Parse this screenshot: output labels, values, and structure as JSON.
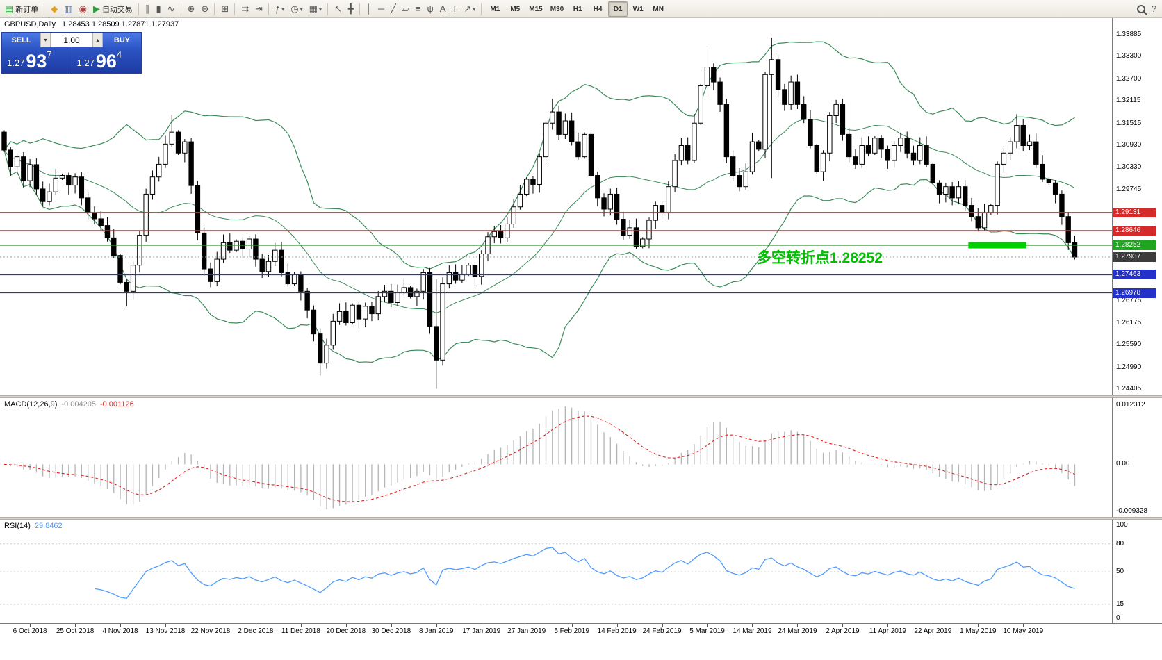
{
  "toolbar": {
    "groups": [
      {
        "items": [
          {
            "name": "new-order-button",
            "glyph": "▤",
            "glyph_color": "#2e9e3e",
            "label": "新订单"
          }
        ]
      },
      {
        "items": [
          {
            "name": "metaeditor-button",
            "glyph": "◆",
            "glyph_color": "#e0a020"
          },
          {
            "name": "market-watch-button",
            "glyph": "▥",
            "glyph_color": "#3a6ad4"
          },
          {
            "name": "navigator-button",
            "glyph": "◉",
            "glyph_color": "#b04040"
          },
          {
            "name": "autotrading-button",
            "glyph": "▶",
            "glyph_color": "#2e9e3e",
            "label": "自动交易"
          }
        ]
      },
      {
        "items": [
          {
            "name": "bar-chart-button",
            "glyph": "∥"
          },
          {
            "name": "candlestick-chart-button",
            "glyph": "▮"
          },
          {
            "name": "line-chart-button",
            "glyph": "∿"
          }
        ]
      },
      {
        "items": [
          {
            "name": "zoom-in-button",
            "glyph": "⊕"
          },
          {
            "name": "zoom-out-button",
            "glyph": "⊖"
          }
        ]
      },
      {
        "items": [
          {
            "name": "tile-windows-button",
            "glyph": "⊞"
          }
        ]
      },
      {
        "items": [
          {
            "name": "auto-scroll-button",
            "glyph": "⇉"
          },
          {
            "name": "chart-shift-button",
            "glyph": "⇥"
          }
        ]
      },
      {
        "items": [
          {
            "name": "indicators-button",
            "glyph": "ƒ",
            "caret": true
          },
          {
            "name": "periods-button",
            "glyph": "◷",
            "caret": true
          },
          {
            "name": "templates-button",
            "glyph": "▦",
            "caret": true
          }
        ]
      },
      {
        "items": [
          {
            "name": "cursor-button",
            "glyph": "↖"
          },
          {
            "name": "crosshair-button",
            "glyph": "╋"
          }
        ]
      },
      {
        "items": [
          {
            "name": "vertical-line-button",
            "glyph": "│"
          },
          {
            "name": "horizontal-line-button",
            "glyph": "─"
          },
          {
            "name": "trendline-button",
            "glyph": "╱"
          },
          {
            "name": "channel-button",
            "glyph": "▱"
          },
          {
            "name": "fibonacci-button",
            "glyph": "≡"
          },
          {
            "name": "pitchfork-button",
            "glyph": "ψ"
          },
          {
            "name": "text-button",
            "glyph": "A"
          },
          {
            "name": "text-label-button",
            "glyph": "T"
          },
          {
            "name": "arrow-tools-button",
            "glyph": "↗",
            "caret": true
          }
        ]
      }
    ],
    "timeframes": [
      "M1",
      "M5",
      "M15",
      "M30",
      "H1",
      "H4",
      "D1",
      "W1",
      "MN"
    ],
    "active_timeframe": "D1",
    "right_items": [
      {
        "name": "search-button",
        "css_icon": "mag"
      },
      {
        "name": "help-button",
        "glyph": "?"
      }
    ]
  },
  "quote": {
    "symbol_period": "GBPUSD,Daily",
    "ohlc": "1.28453 1.28509 1.27871 1.27937"
  },
  "trade_panel": {
    "sell_label": "SELL",
    "buy_label": "BUY",
    "volume": "1.00",
    "sell_price_small": "1.27",
    "sell_price_big": "93",
    "sell_price_sup": "7",
    "buy_price_small": "1.27",
    "buy_price_big": "96",
    "buy_price_sup": "4"
  },
  "annotation": {
    "text": "多空转折点1.28252",
    "color": "#00c000"
  },
  "price_axis": {
    "labels": [
      "1.33885",
      "1.33300",
      "1.32700",
      "1.32115",
      "1.31515",
      "1.30930",
      "1.30330",
      "1.29745",
      "1.29160",
      "1.28560",
      "1.27975",
      "1.27380",
      "1.26775",
      "1.26175",
      "1.25590",
      "1.24990",
      "1.24405"
    ],
    "tags": [
      {
        "text": "1.29131",
        "bg": "#d42a2a"
      },
      {
        "text": "1.28646",
        "bg": "#d42a2a"
      },
      {
        "text": "1.28252",
        "bg": "#1fa51f"
      },
      {
        "text": "1.27937",
        "bg": "#3c3c3c"
      },
      {
        "text": "1.27463",
        "bg": "#2431c8"
      },
      {
        "text": "1.26978",
        "bg": "#2431c8"
      }
    ]
  },
  "indicators": {
    "macd": {
      "name": "MACD(12,26,9)",
      "value1": "-0.004205",
      "value2": "-0.001126",
      "axis_top": "0.012312",
      "axis_zero": "0.00",
      "axis_bottom": "-0.009328"
    },
    "rsi": {
      "name": "RSI(14)",
      "value": "29.8462",
      "axis": [
        "100",
        "80",
        "50",
        "15",
        "0"
      ],
      "levels": [
        80,
        50,
        15
      ]
    }
  },
  "colors": {
    "bollinger": "#3a8a58",
    "candle_up": "#ffffff",
    "candle_down": "#000000",
    "candle_outline": "#000000",
    "macd_histogram": "#b4b4b4",
    "macd_signal": "#e02020",
    "rsi_line": "#4f9bff",
    "support_bar": "#00cf00",
    "current_price_line": "#999999"
  },
  "chart_data": {
    "type": "candlestick",
    "symbol": "GBPUSD",
    "timeframe": "Daily",
    "ylim": [
      1.24405,
      1.33885
    ],
    "open0": 1.3128,
    "closes": [
      1.308,
      1.3035,
      1.3062,
      1.2998,
      1.3041,
      1.2976,
      1.2942,
      1.2968,
      1.3005,
      1.3012,
      1.2986,
      1.3008,
      1.2952,
      1.2912,
      1.2896,
      1.2878,
      1.2845,
      1.2798,
      1.2726,
      1.2702,
      1.2772,
      1.2852,
      1.2962,
      1.3008,
      1.3042,
      1.3096,
      1.3128,
      1.3072,
      1.3102,
      1.2985,
      1.2858,
      1.2762,
      1.2728,
      1.2788,
      1.2832,
      1.2812,
      1.2836,
      1.2815,
      1.2842,
      1.2788,
      1.2755,
      1.2782,
      1.2812,
      1.2752,
      1.2722,
      1.2748,
      1.2702,
      1.2652,
      1.2588,
      1.251,
      1.2558,
      1.2622,
      1.2648,
      1.2618,
      1.2665,
      1.2628,
      1.2662,
      1.2642,
      1.2688,
      1.2702,
      1.2672,
      1.2698,
      1.2712,
      1.2688,
      1.2702,
      1.2752,
      1.2608,
      1.2518,
      1.2722,
      1.2752,
      1.2732,
      1.2748,
      1.2772,
      1.2742,
      1.2802,
      1.2848,
      1.2862,
      1.2845,
      1.2882,
      1.2928,
      1.2962,
      1.3002,
      1.2988,
      1.3062,
      1.3152,
      1.3182,
      1.3122,
      1.3158,
      1.3102,
      1.3062,
      1.3122,
      1.3012,
      1.2952,
      1.2922,
      1.2962,
      1.2895,
      1.2852,
      1.2872,
      1.2822,
      1.2842,
      1.2892,
      1.2932,
      1.2912,
      1.2982,
      1.3052,
      1.3092,
      1.3052,
      1.3152,
      1.3252,
      1.3302,
      1.3262,
      1.3202,
      1.3062,
      1.3012,
      1.2982,
      1.3022,
      1.3102,
      1.3082,
      1.3282,
      1.3322,
      1.3242,
      1.3202,
      1.3262,
      1.3202,
      1.3162,
      1.3092,
      1.3022,
      1.3072,
      1.3172,
      1.3202,
      1.3122,
      1.3062,
      1.3042,
      1.3092,
      1.3072,
      1.3112,
      1.3082,
      1.3052,
      1.3092,
      1.3112,
      1.3072,
      1.3052,
      1.3092,
      1.3042,
      1.2992,
      1.2962,
      1.2982,
      1.2952,
      1.2982,
      1.2932,
      1.2902,
      1.2872,
      1.2912,
      1.2932,
      1.3042,
      1.3072,
      1.3102,
      1.3146,
      1.3092,
      1.3102,
      1.3042,
      1.3002,
      1.2992,
      1.2962,
      1.2902,
      1.2832,
      1.27937
    ],
    "extremes": {
      "19": [
        null,
        1.2662
      ],
      "26": [
        1.3175,
        null
      ],
      "49": [
        null,
        1.2477
      ],
      "67": [
        1.2735,
        1.2441
      ],
      "85": [
        1.3217,
        null
      ],
      "109": [
        1.3352,
        null
      ],
      "119": [
        1.3381,
        1.3005
      ],
      "157": [
        1.3176,
        null
      ],
      "166": [
        1.28509,
        1.27871
      ]
    },
    "bollinger": {
      "period": 20,
      "deviation": 2
    },
    "hlines": [
      {
        "price": 1.29131,
        "color": "#d42a2a"
      },
      {
        "price": 1.28646,
        "color": "#d42a2a"
      },
      {
        "price": 1.28252,
        "color": "#1fa51f"
      },
      {
        "price": 1.27463,
        "color": "#2431c8"
      },
      {
        "price": 1.26978,
        "color": "#2431c8"
      }
    ],
    "current_price": 1.27937,
    "support_bar": {
      "price": 1.28252,
      "from_index": 149.5,
      "to_index": 158.5
    },
    "date_labels": [
      "6 Oct 2018",
      "25 Oct 2018",
      "4 Nov 2018",
      "13 Nov 2018",
      "22 Nov 2018",
      "2 Dec 2018",
      "11 Dec 2018",
      "20 Dec 2018",
      "30 Dec 2018",
      "8 Jan 2019",
      "17 Jan 2019",
      "27 Jan 2019",
      "5 Feb 2019",
      "14 Feb 2019",
      "24 Feb 2019",
      "5 Mar 2019",
      "14 Mar 2019",
      "24 Mar 2019",
      "2 Apr 2019",
      "11 Apr 2019",
      "22 Apr 2019",
      "1 May 2019",
      "10 May 2019"
    ],
    "label_start_index": 4,
    "label_step": 7
  }
}
